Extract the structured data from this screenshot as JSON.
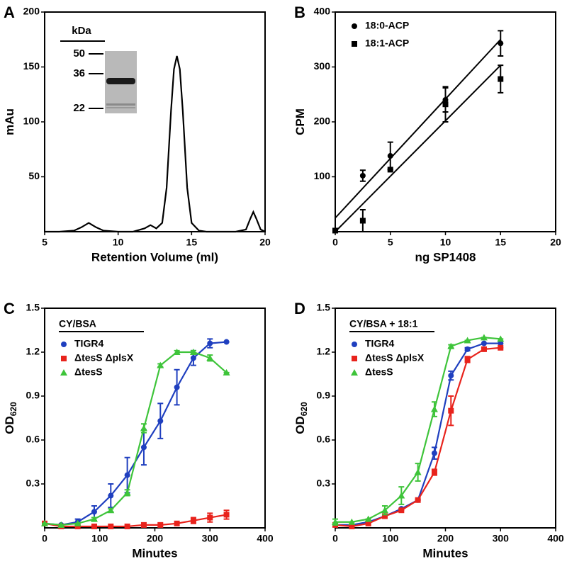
{
  "chart_data": [
    {
      "type": "line",
      "panel": "A",
      "x_label": "Retention Volume (ml)",
      "y_label": "mAu",
      "color": "#000000",
      "x": [
        5,
        6,
        7,
        7.5,
        8,
        8.5,
        9,
        10,
        11,
        11.8,
        12.2,
        12.6,
        13,
        13.3,
        13.6,
        13.8,
        14,
        14.2,
        14.4,
        14.7,
        15,
        15.5,
        16,
        17,
        18,
        18.7,
        19,
        19.2,
        19.4,
        19.7,
        20
      ],
      "values": [
        0,
        0,
        1,
        4,
        8,
        4,
        1,
        0,
        0,
        3,
        6,
        3,
        8,
        40,
        110,
        148,
        160,
        148,
        110,
        40,
        8,
        1,
        0,
        0,
        0,
        2,
        12,
        18,
        12,
        2,
        0
      ],
      "xlim": [
        5,
        20
      ],
      "xticks": [
        5,
        10,
        15,
        20
      ],
      "ylim": [
        0,
        200
      ],
      "yticks": [
        50,
        100,
        150,
        200
      ],
      "inset": {
        "title": "kDa",
        "markers": [
          50,
          36,
          22
        ]
      }
    },
    {
      "type": "scatter",
      "panel": "B",
      "x_label": "ng SP1408",
      "y_label": "CPM",
      "legend": "upper left",
      "xlim": [
        0,
        20
      ],
      "xticks": [
        0,
        5,
        10,
        15,
        20
      ],
      "ylim": [
        0,
        400
      ],
      "yticks": [
        100,
        200,
        300,
        400
      ],
      "series": [
        {
          "name": "18:0-ACP",
          "color": "#000000",
          "marker": "circle",
          "x": [
            2.5,
            5,
            10,
            15
          ],
          "values": [
            102,
            138,
            240,
            343
          ],
          "errors": [
            10,
            25,
            22,
            23
          ],
          "fit_x": [
            0,
            15
          ],
          "fit_values": [
            25,
            350
          ]
        },
        {
          "name": "18:1-ACP",
          "color": "#000000",
          "marker": "square",
          "x": [
            0,
            2.5,
            5,
            10,
            15
          ],
          "values": [
            2,
            20,
            113,
            232,
            278
          ],
          "errors": [
            0,
            20,
            0,
            32,
            25
          ],
          "fit_x": [
            0,
            15
          ],
          "fit_values": [
            0,
            303
          ]
        }
      ]
    },
    {
      "type": "line",
      "panel": "C",
      "x_label": "Minutes",
      "y_label": "OD",
      "y_label_subscript": "620",
      "legend": "upper left",
      "legend_title": "CY/BSA",
      "xlim": [
        0,
        400
      ],
      "xticks": [
        0,
        100,
        200,
        300,
        400
      ],
      "ylim": [
        0,
        1.5
      ],
      "yticks": [
        0.3,
        0.6,
        0.9,
        1.2,
        1.5
      ],
      "series": [
        {
          "name": "TIGR4",
          "color": "#1f3fbf",
          "marker": "circle",
          "x": [
            0,
            30,
            60,
            90,
            120,
            150,
            180,
            210,
            240,
            270,
            300,
            330
          ],
          "values": [
            0.03,
            0.02,
            0.04,
            0.11,
            0.22,
            0.36,
            0.55,
            0.73,
            0.96,
            1.16,
            1.26,
            1.27
          ],
          "errors": [
            0,
            0,
            0.02,
            0.04,
            0.08,
            0.12,
            0.12,
            0.12,
            0.12,
            0.05,
            0.03,
            0
          ]
        },
        {
          "name": "ΔtesS ΔplsX",
          "color": "#e8231c",
          "marker": "square",
          "x": [
            0,
            30,
            60,
            90,
            120,
            150,
            180,
            210,
            240,
            270,
            300,
            330
          ],
          "values": [
            0.03,
            0.01,
            0.01,
            0.01,
            0.01,
            0.01,
            0.02,
            0.02,
            0.03,
            0.05,
            0.07,
            0.09
          ],
          "errors": [
            0,
            0,
            0,
            0,
            0,
            0,
            0,
            0,
            0,
            0.02,
            0.03,
            0.03
          ]
        },
        {
          "name": "ΔtesS",
          "color": "#3ec43a",
          "marker": "triangle",
          "x": [
            0,
            30,
            60,
            90,
            120,
            150,
            180,
            210,
            240,
            270,
            300,
            330
          ],
          "values": [
            0.03,
            0.02,
            0.03,
            0.06,
            0.12,
            0.24,
            0.68,
            1.11,
            1.2,
            1.2,
            1.16,
            1.06
          ],
          "errors": [
            0,
            0,
            0,
            0.01,
            0.01,
            0.02,
            0.03,
            0.01,
            0.01,
            0.01,
            0.02,
            0
          ]
        }
      ]
    },
    {
      "type": "line",
      "panel": "D",
      "x_label": "Minutes",
      "y_label": "OD",
      "y_label_subscript": "620",
      "legend": "upper left",
      "legend_title": "CY/BSA + 18:1",
      "xlim": [
        0,
        400
      ],
      "xticks": [
        0,
        100,
        200,
        300,
        400
      ],
      "ylim": [
        0,
        1.5
      ],
      "yticks": [
        0.3,
        0.6,
        0.9,
        1.2,
        1.5
      ],
      "series": [
        {
          "name": "TIGR4",
          "color": "#1f3fbf",
          "marker": "circle",
          "x": [
            0,
            30,
            60,
            90,
            120,
            150,
            180,
            210,
            240,
            270,
            300
          ],
          "values": [
            0.02,
            0.02,
            0.04,
            0.08,
            0.13,
            0.19,
            0.51,
            1.04,
            1.22,
            1.26,
            1.26
          ],
          "errors": [
            0,
            0,
            0,
            0,
            0,
            0,
            0.04,
            0.03,
            0.01,
            0,
            0
          ]
        },
        {
          "name": "ΔtesS ΔplsX",
          "color": "#e8231c",
          "marker": "square",
          "x": [
            0,
            30,
            60,
            90,
            120,
            150,
            180,
            210,
            240,
            270,
            300
          ],
          "values": [
            0.02,
            0.01,
            0.03,
            0.08,
            0.12,
            0.19,
            0.38,
            0.8,
            1.15,
            1.22,
            1.23
          ],
          "errors": [
            0,
            0,
            0,
            0,
            0,
            0,
            0.02,
            0.1,
            0.02,
            0.01,
            0
          ]
        },
        {
          "name": "ΔtesS",
          "color": "#3ec43a",
          "marker": "triangle",
          "x": [
            0,
            30,
            60,
            90,
            120,
            150,
            180,
            210,
            240,
            270,
            300
          ],
          "values": [
            0.04,
            0.04,
            0.06,
            0.12,
            0.22,
            0.38,
            0.81,
            1.24,
            1.28,
            1.3,
            1.29
          ],
          "errors": [
            0.02,
            0,
            0,
            0.03,
            0.06,
            0.06,
            0.05,
            0.01,
            0,
            0,
            0
          ]
        }
      ]
    }
  ]
}
